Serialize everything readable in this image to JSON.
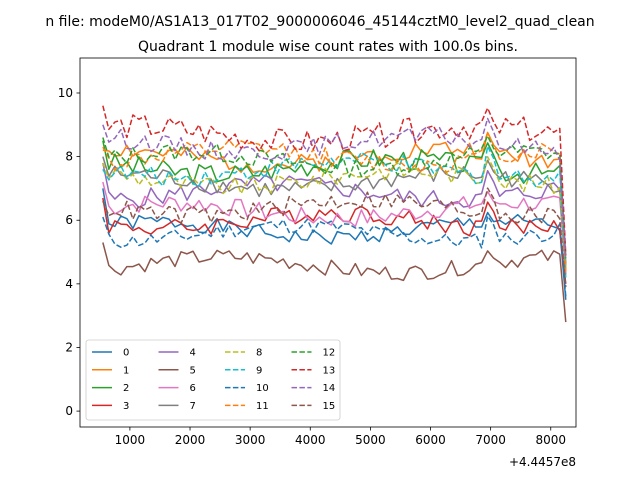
{
  "suptitle": "n file: modeM0/AS1A13_017T02_9000006046_45144cztM0_level2_quad_clean",
  "chart_data": {
    "type": "line",
    "title": "Quadrant 1 module wise count rates with 100.0s bins.",
    "xlabel": "",
    "ylabel": "",
    "x_offset_label": "+4.4457e8",
    "xlim": [
      170,
      8420
    ],
    "ylim": [
      -0.5,
      11.1
    ],
    "xticks": [
      1000,
      2000,
      3000,
      4000,
      5000,
      6000,
      7000,
      8000
    ],
    "yticks": [
      0,
      2,
      4,
      6,
      8,
      10
    ],
    "grid": false,
    "legend_position": "lower-left",
    "x_start": 550,
    "x_step": 100,
    "x_count": 78,
    "dip_profile": [
      {
        "x": 6200,
        "factor": 1.0
      },
      {
        "x": 6300,
        "factor": 0.2
      },
      {
        "x": 6400,
        "factor": 0.0
      },
      {
        "x": 6500,
        "factor": 0.0
      },
      {
        "x": 6600,
        "factor": 0.0
      },
      {
        "x": 6700,
        "factor": 0.15
      },
      {
        "x": 6800,
        "factor": 1.05
      }
    ],
    "series": [
      {
        "name": "0",
        "color": "#1f77b4",
        "dash": "solid",
        "level": 5.7,
        "amplitude": 0.25,
        "start": 7.0,
        "end": 3.5
      },
      {
        "name": "1",
        "color": "#ff7f0e",
        "dash": "solid",
        "level": 8.0,
        "amplitude": 0.3,
        "start": 8.2,
        "end": 4.3
      },
      {
        "name": "2",
        "color": "#2ca02c",
        "dash": "solid",
        "level": 7.7,
        "amplitude": 0.35,
        "start": 8.5,
        "end": 4.6
      },
      {
        "name": "3",
        "color": "#d62728",
        "dash": "solid",
        "level": 6.0,
        "amplitude": 0.3,
        "start": 6.7,
        "end": 4.0
      },
      {
        "name": "4",
        "color": "#9467bd",
        "dash": "solid",
        "level": 6.9,
        "amplitude": 0.3,
        "start": 7.8,
        "end": 4.6
      },
      {
        "name": "5",
        "color": "#8c564b",
        "dash": "solid",
        "level": 4.6,
        "amplitude": 0.25,
        "start": 5.3,
        "end": 2.8
      },
      {
        "name": "6",
        "color": "#e377c2",
        "dash": "solid",
        "level": 6.3,
        "amplitude": 0.3,
        "start": 7.2,
        "end": 4.3
      },
      {
        "name": "7",
        "color": "#7f7f7f",
        "dash": "solid",
        "level": 7.2,
        "amplitude": 0.3,
        "start": 8.0,
        "end": 4.5
      },
      {
        "name": "8",
        "color": "#bcbd22",
        "dash": "dashed",
        "level": 7.3,
        "amplitude": 0.3,
        "start": 7.8,
        "end": 4.5
      },
      {
        "name": "9",
        "color": "#17becf",
        "dash": "dashed",
        "level": 7.6,
        "amplitude": 0.3,
        "start": 7.6,
        "end": 4.2
      },
      {
        "name": "10",
        "color": "#1f77b4",
        "dash": "dashed",
        "level": 5.6,
        "amplitude": 0.25,
        "start": 6.1,
        "end": 3.6
      },
      {
        "name": "11",
        "color": "#ff7f0e",
        "dash": "dashed",
        "level": 8.0,
        "amplitude": 0.3,
        "start": 8.3,
        "end": 4.4
      },
      {
        "name": "12",
        "color": "#2ca02c",
        "dash": "dashed",
        "level": 7.9,
        "amplitude": 0.3,
        "start": 8.6,
        "end": 4.8
      },
      {
        "name": "13",
        "color": "#d62728",
        "dash": "dashed",
        "level": 8.7,
        "amplitude": 0.4,
        "start": 9.6,
        "end": 4.9
      },
      {
        "name": "14",
        "color": "#9467bd",
        "dash": "dashed",
        "level": 8.4,
        "amplitude": 0.3,
        "start": 9.0,
        "end": 4.8
      },
      {
        "name": "15",
        "color": "#8c564b",
        "dash": "dashed",
        "level": 6.4,
        "amplitude": 0.3,
        "start": 6.6,
        "end": 3.9
      }
    ]
  }
}
